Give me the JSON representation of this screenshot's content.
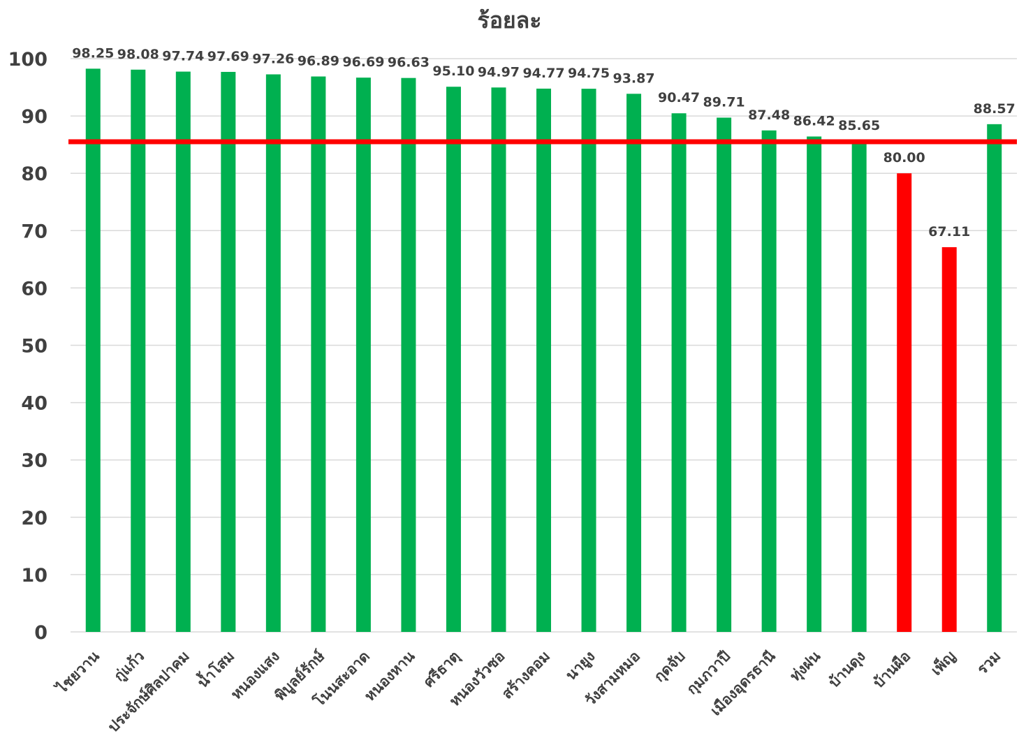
{
  "chart_data": {
    "type": "bar",
    "title": "ร้อยละ",
    "xlabel": "",
    "ylabel": "",
    "ylim": [
      0,
      100
    ],
    "yticks": [
      0,
      10,
      20,
      30,
      40,
      50,
      60,
      70,
      80,
      90,
      100
    ],
    "grid": true,
    "threshold_line": {
      "value": 85.5,
      "color": "#ff0000"
    },
    "categories": [
      "ไชยวาน",
      "กู่แก้ว",
      "ประจักษ์ศิลปาคม",
      "น้ำโสม",
      "หนองแสง",
      "พิบูลย์รักษ์",
      "โนนสะอาด",
      "หนองหาน",
      "ศรีธาตุ",
      "หนองวัวซอ",
      "สร้างคอม",
      "นายูง",
      "วังสามหมอ",
      "กุดจับ",
      "กุมภวาปี",
      "เมืองอุดรธานี",
      "ทุ่งฝน",
      "บ้านดุง",
      "บ้านผือ",
      "เพ็ญ",
      "รวม"
    ],
    "values": [
      98.25,
      98.08,
      97.74,
      97.69,
      97.26,
      96.89,
      96.69,
      96.63,
      95.1,
      94.97,
      94.77,
      94.75,
      93.87,
      90.47,
      89.71,
      87.48,
      86.42,
      85.65,
      80.0,
      67.11,
      88.57
    ],
    "data_labels": [
      "98.25",
      "98.08",
      "97.74",
      "97.69",
      "97.26",
      "96.89",
      "96.69",
      "96.63",
      "95.10",
      "94.97",
      "94.77",
      "94.75",
      "93.87",
      "90.47",
      "89.71",
      "87.48",
      "86.42",
      "85.65",
      "80.00",
      "67.11",
      "88.57"
    ],
    "bar_colors": [
      "#00b050",
      "#00b050",
      "#00b050",
      "#00b050",
      "#00b050",
      "#00b050",
      "#00b050",
      "#00b050",
      "#00b050",
      "#00b050",
      "#00b050",
      "#00b050",
      "#00b050",
      "#00b050",
      "#00b050",
      "#00b050",
      "#00b050",
      "#00b050",
      "#ff0000",
      "#ff0000",
      "#00b050"
    ],
    "colors": {
      "above": "#00b050",
      "below": "#ff0000",
      "text": "#404040",
      "grid": "#d9d9d9"
    }
  }
}
